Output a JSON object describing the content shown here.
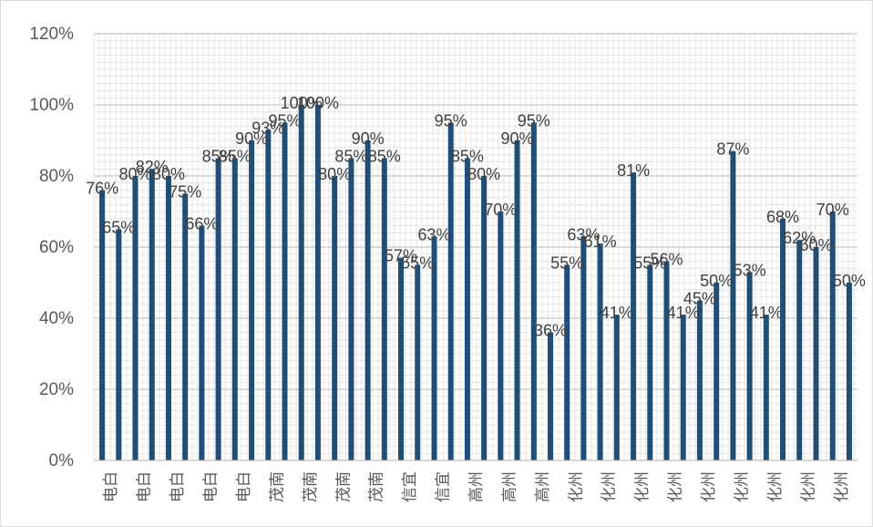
{
  "chart_data": {
    "type": "bar",
    "title": "",
    "xlabel": "",
    "ylabel": "",
    "ylim": [
      0,
      1.2
    ],
    "y_ticks": [
      "0%",
      "20%",
      "40%",
      "60%",
      "80%",
      "100%",
      "120%"
    ],
    "categories": [
      "电白",
      "电白",
      "电白",
      "电白",
      "电白",
      "电白",
      "电白",
      "电白",
      "电白",
      "电白",
      "茂南",
      "茂南",
      "茂南",
      "茂南",
      "茂南",
      "茂南",
      "茂南",
      "茂南",
      "信宜",
      "信宜",
      "信宜",
      "信宜",
      "高州",
      "高州",
      "高州",
      "高州",
      "高州",
      "高州",
      "化州",
      "化州",
      "化州",
      "化州",
      "化州",
      "化州",
      "化州",
      "化州",
      "化州",
      "化州",
      "化州",
      "化州",
      "化州",
      "化州",
      "化州",
      "化州",
      "化州",
      "化州"
    ],
    "x_tick_labels": [
      "电白",
      "电白",
      "电白",
      "电白",
      "电白",
      "茂南",
      "茂南",
      "茂南",
      "茂南",
      "信宜",
      "信宜",
      "高州",
      "高州",
      "高州",
      "化州",
      "化州",
      "化州",
      "化州",
      "化州",
      "化州",
      "化州",
      "化州",
      "化州"
    ],
    "values": [
      0.76,
      0.65,
      0.8,
      0.82,
      0.8,
      0.75,
      0.66,
      0.85,
      0.85,
      0.9,
      0.93,
      0.95,
      1.0,
      1.0,
      0.8,
      0.85,
      0.9,
      0.85,
      0.57,
      0.55,
      0.63,
      0.95,
      0.85,
      0.8,
      0.7,
      0.9,
      0.95,
      0.36,
      0.55,
      0.63,
      0.61,
      0.41,
      0.81,
      0.55,
      0.56,
      0.41,
      0.45,
      0.5,
      0.87,
      0.53,
      0.41,
      0.68,
      0.62,
      0.6,
      0.7,
      0.5
    ],
    "data_labels": [
      "76%",
      "65%",
      "80%",
      "82%",
      "80%",
      "75%",
      "66%",
      "85%",
      "85%",
      "90%",
      "93%",
      "95%",
      "100%",
      "100%",
      "80%",
      "85%",
      "90%",
      "85%",
      "57%",
      "55%",
      "63%",
      "95%",
      "85%",
      "80%",
      "70%",
      "90%",
      "95%",
      "36%",
      "55%",
      "63%",
      "61%",
      "41%",
      "81%",
      "55%",
      "56%",
      "41%",
      "45%",
      "50%",
      "87%",
      "53%",
      "41%",
      "68%",
      "62%",
      "60%",
      "70%",
      "50%"
    ],
    "grid": true,
    "legend": "none",
    "colors": {
      "bar": "#1f4e79",
      "grid_major": "#c8c8c8",
      "grid_minor": "#e3e3e3",
      "text": "#595959"
    }
  }
}
